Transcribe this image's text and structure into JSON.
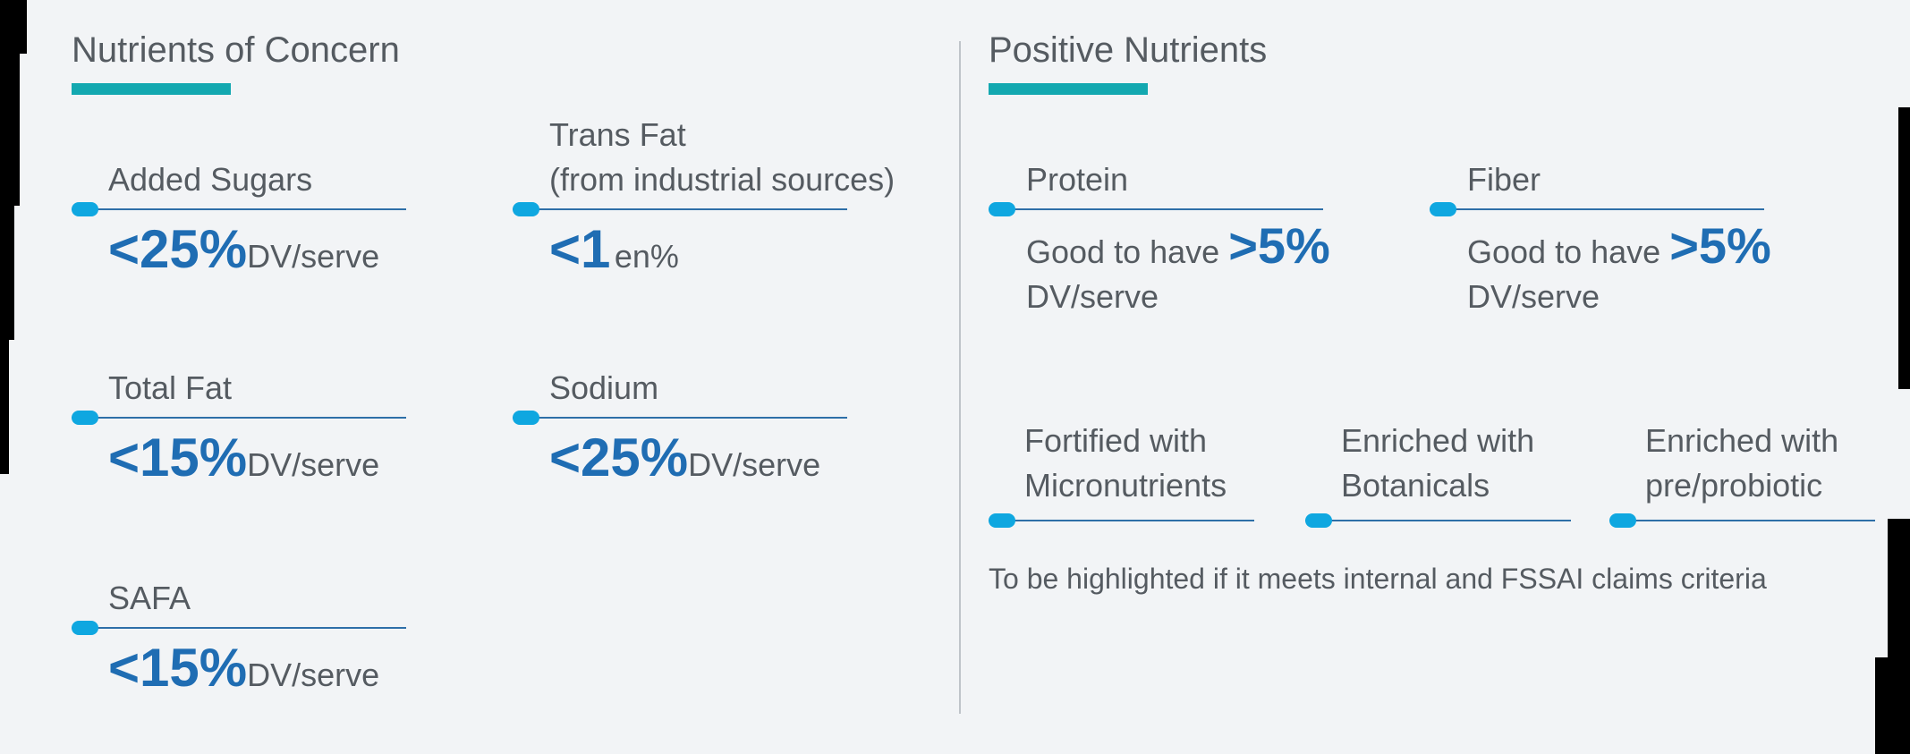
{
  "left": {
    "title": "Nutrients of Concern",
    "items": [
      {
        "label": "Added Sugars",
        "value": "<25%",
        "unit": "DV/serve"
      },
      {
        "label_line1": "Trans Fat",
        "label_line2": "(from industrial sources)",
        "value": "<1",
        "unit": "en%"
      },
      {
        "label": "Total Fat",
        "value": "<15%",
        "unit": "DV/serve"
      },
      {
        "label": "Sodium",
        "value": "<25%",
        "unit": "DV/serve"
      },
      {
        "label": "SAFA",
        "value": "<15%",
        "unit": "DV/serve"
      }
    ]
  },
  "right": {
    "title": "Positive Nutrients",
    "items": [
      {
        "label": "Protein",
        "prefix": "Good to have",
        "value": ">5%",
        "unit": "DV/serve"
      },
      {
        "label": "Fiber",
        "prefix": "Good to have",
        "value": ">5%",
        "unit": "DV/serve"
      }
    ],
    "claims": [
      {
        "line1": "Fortified with",
        "line2": "Micronutrients"
      },
      {
        "line1": "Enriched with",
        "line2": "Botanicals"
      },
      {
        "line1": "Enriched with",
        "line2": "pre/probiotic"
      }
    ],
    "note": "To be highlighted if it meets internal and FSSAI claims criteria"
  },
  "colors": {
    "background": "#f2f4f6",
    "title_bar": "#13a8b0",
    "value": "#1f6db3",
    "dot": "#0fa7e0",
    "rule": "#2e6fa8",
    "text": "#555b61"
  }
}
